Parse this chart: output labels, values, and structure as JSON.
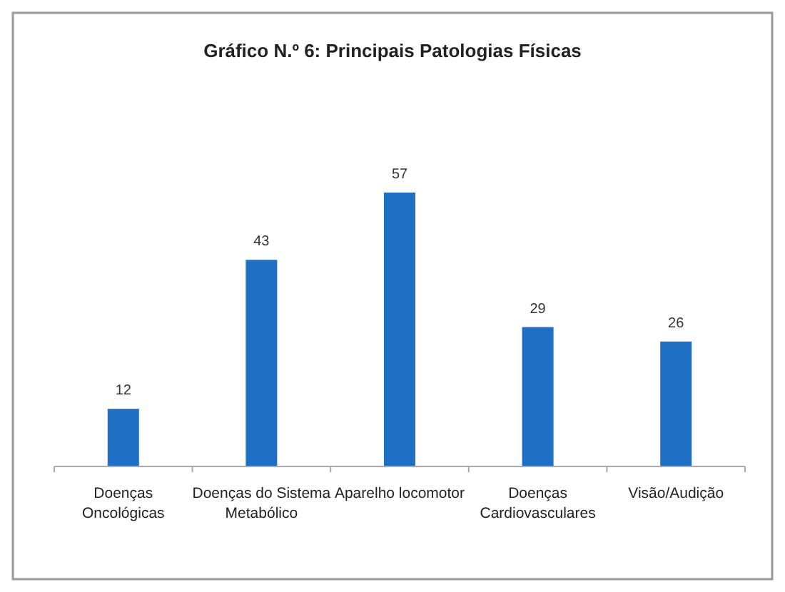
{
  "chart_data": {
    "type": "bar",
    "title": "Gráfico N.º 6: Principais Patologias Físicas",
    "categories": [
      "Doenças Oncológicas",
      "Doenças do Sistema Metabólico",
      "Aparelho locomotor",
      "Doenças Cardiovasculares",
      "Visão/Audição"
    ],
    "values": [
      12,
      43,
      57,
      29,
      26
    ],
    "color": "#1f6fc5",
    "data_labels": true
  }
}
